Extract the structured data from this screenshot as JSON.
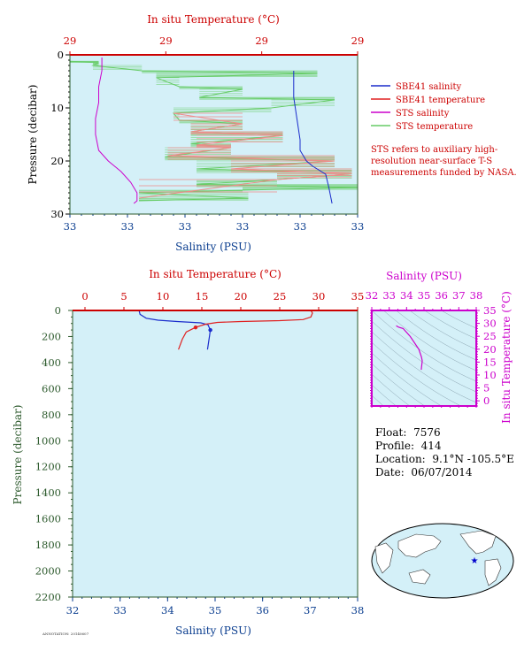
{
  "info": {
    "float_label": "Float:",
    "float_value": "7576",
    "profile_label": "Profile:",
    "profile_value": "414",
    "location_label": "Location:",
    "location_value": "9.1°N  -105.5°E",
    "date_label": "Date:",
    "date_value": "06/07/2014"
  },
  "note": "STS refers to auxiliary high-resolution near-surface T-S measurements funded by NASA.",
  "footer": "ANNOTATION: 20140607",
  "colors": {
    "sal": "#1a2ccc",
    "temp": "#e02020",
    "sts_sal": "#cc00cc",
    "sts_temp": "#66cc66",
    "plot_bg": "#d4f0f8",
    "axis_red": "#cc0000",
    "axis_blue": "#0a3d8f",
    "axis_green": "#2d5a2d",
    "axis_mag": "#cc00cc"
  },
  "chart_data": [
    {
      "id": "near-surface",
      "type": "line",
      "top_axis_title": "In situ Temperature (°C)",
      "top_ticks": [
        "29",
        "29",
        "29",
        "29"
      ],
      "bottom_axis_title": "Salinity (PSU)",
      "bottom_ticks": [
        "33",
        "33",
        "33",
        "33",
        "33",
        "33"
      ],
      "ylabel": "Pressure (decibar)",
      "yticks": [
        0,
        10,
        20,
        30
      ],
      "ylim": [
        0,
        30
      ],
      "legend": [
        "SBE41 salinity",
        "SBE41 temperature",
        "STS salinity",
        "STS temperature"
      ],
      "series": [
        {
          "name": "SBE41 salinity",
          "axis": "salinity",
          "x": [
            33.7,
            33.7,
            33.71,
            33.72,
            33.72,
            33.74,
            33.76,
            33.8,
            33.81,
            33.82
          ],
          "y": [
            3,
            8,
            12,
            16,
            18,
            20,
            21,
            22.5,
            25,
            28
          ]
        },
        {
          "name": "STS salinity",
          "axis": "salinity",
          "x": [
            33.1,
            33.1,
            33.09,
            33.09,
            33.08,
            33.08,
            33.09,
            33.12,
            33.16,
            33.19,
            33.21,
            33.21,
            33.2
          ],
          "y": [
            0.5,
            3,
            6,
            9,
            12,
            15,
            18,
            20,
            22,
            24,
            26,
            27.5,
            28
          ]
        },
        {
          "name": "STS temperature",
          "axis": "temperature_fraction",
          "x": [
            0.0,
            0.0,
            0.1,
            0.08,
            0.25,
            0.86,
            0.3,
            0.38,
            0.6,
            0.45,
            0.92,
            0.7,
            0.36,
            0.38,
            0.6,
            0.42,
            0.74,
            0.42,
            0.56,
            0.33,
            0.92,
            0.44,
            0.98,
            0.72,
            0.44,
            1.0,
            0.6,
            0.24,
            0.62,
            0.24
          ],
          "y": [
            0.8,
            1.2,
            1.5,
            2.0,
            3.0,
            3.5,
            4.3,
            6.0,
            6.5,
            8.0,
            8.5,
            10.0,
            11.0,
            12.3,
            13.0,
            14.5,
            15.2,
            16.7,
            17.5,
            19.2,
            20.0,
            21.5,
            22.4,
            23.5,
            24.4,
            25.0,
            25.5,
            26.0,
            27.0,
            27.5
          ]
        },
        {
          "name": "SBE41 temperature",
          "axis": "temperature_fraction",
          "x": [
            0.36,
            0.6,
            0.42,
            0.74,
            0.44,
            0.56,
            0.34,
            0.92,
            0.56,
            0.98,
            0.72,
            0.24
          ],
          "y": [
            11,
            13,
            14.5,
            15.2,
            17,
            17.5,
            19,
            20,
            21.5,
            22.4,
            23.5,
            27
          ]
        }
      ]
    },
    {
      "id": "full-profile",
      "type": "line",
      "top_axis_title": "In situ Temperature (°C)",
      "top_ticks": [
        0,
        5,
        10,
        15,
        20,
        25,
        30,
        35
      ],
      "bottom_axis_title": "Salinity (PSU)",
      "bottom_ticks": [
        32,
        33,
        34,
        35,
        36,
        37,
        38
      ],
      "xlim_temp": [
        0,
        35
      ],
      "xlim_sal": [
        32,
        38
      ],
      "ylabel": "Pressure (decibar)",
      "yticks": [
        0,
        200,
        400,
        600,
        800,
        1000,
        1200,
        1400,
        1600,
        1800,
        2000,
        2200
      ],
      "ylim": [
        0,
        2200
      ],
      "series": [
        {
          "name": "SBE41 salinity",
          "x": [
            33.4,
            33.42,
            33.55,
            33.8,
            34.2,
            34.7,
            34.85,
            34.9,
            34.88,
            34.86,
            34.84
          ],
          "y": [
            0,
            30,
            60,
            75,
            85,
            95,
            110,
            150,
            200,
            250,
            300
          ]
        },
        {
          "name": "SBE41 temperature",
          "x": [
            29.0,
            29.2,
            29.0,
            28.0,
            25.0,
            20.0,
            17.0,
            15.5,
            14.2,
            13.0,
            12.5,
            12.0
          ],
          "y": [
            0,
            20,
            50,
            70,
            78,
            85,
            92,
            105,
            130,
            165,
            220,
            300
          ]
        }
      ]
    },
    {
      "id": "ts-diagram",
      "type": "line",
      "top_axis_title": "Salinity (PSU)",
      "top_ticks": [
        32,
        33,
        34,
        35,
        36,
        37,
        38
      ],
      "right_axis_title": "In situ Temperature (°C)",
      "right_ticks": [
        0,
        5,
        10,
        15,
        20,
        25,
        30,
        35
      ],
      "xlim": [
        32,
        38
      ],
      "ylim": [
        -2,
        35
      ],
      "series": [
        {
          "name": "T-S",
          "x": [
            33.4,
            33.42,
            33.55,
            33.8,
            34.2,
            34.7,
            34.85,
            34.9,
            34.88,
            34.86,
            34.84
          ],
          "y": [
            29.0,
            29.0,
            28.5,
            28.0,
            25.0,
            20.0,
            17.0,
            15.5,
            14.2,
            13.0,
            12.0
          ]
        }
      ]
    }
  ]
}
